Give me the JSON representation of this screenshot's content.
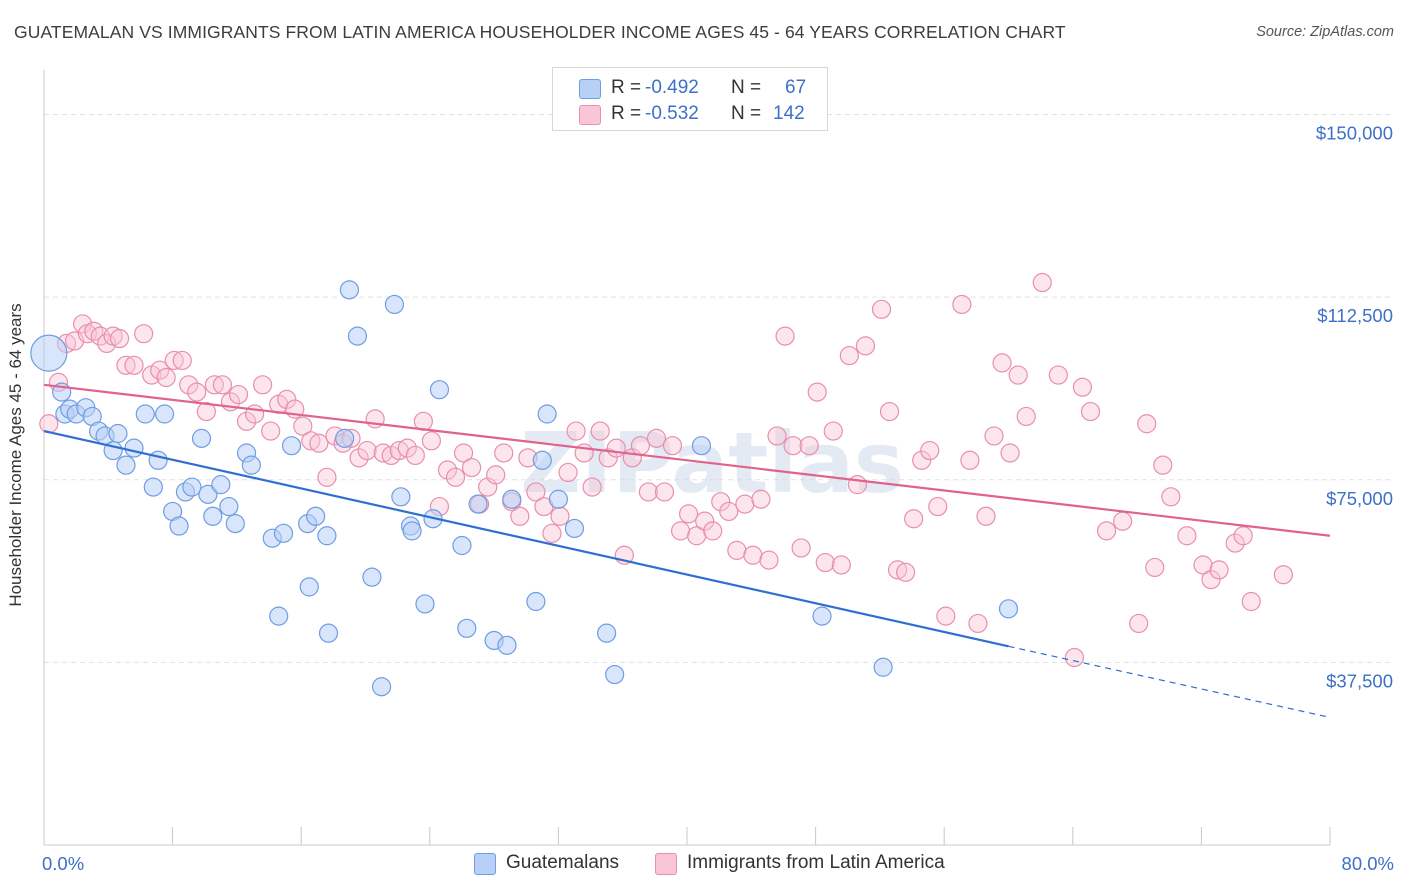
{
  "header": {
    "title": "GUATEMALAN VS IMMIGRANTS FROM LATIN AMERICA HOUSEHOLDER INCOME AGES 45 - 64 YEARS CORRELATION CHART",
    "source": "Source: ZipAtlas.com"
  },
  "stats": {
    "row1": {
      "r_label": "R =",
      "r_value": "-0.492",
      "n_label": "N =",
      "n_value": "67"
    },
    "row2": {
      "r_label": "R =",
      "r_value": "-0.532",
      "n_label": "N =",
      "n_value": "142"
    }
  },
  "legend": {
    "item1": "Guatemalans",
    "item2": "Immigrants from Latin America"
  },
  "colors": {
    "blue_fill": "#b8d0f5",
    "blue_stroke": "#6f9de3",
    "blue_line": "#2f6fd0",
    "pink_fill": "#f8c6d6",
    "pink_stroke": "#e88fae",
    "pink_line": "#e0628d",
    "tick_text": "#3d70c8",
    "grid": "#e2e2e2"
  },
  "chart_data": {
    "type": "scatter",
    "title": "GUATEMALAN VS IMMIGRANTS FROM LATIN AMERICA HOUSEHOLDER INCOME AGES 45 - 64 YEARS CORRELATION CHART",
    "xlabel": "",
    "ylabel": "Householder Income Ages 45 - 64 years",
    "xlim": [
      0,
      80
    ],
    "ylim": [
      0,
      157500
    ],
    "x_tick_labels": [
      "0.0%",
      "80.0%"
    ],
    "y_ticks": [
      37500,
      75000,
      112500,
      150000
    ],
    "y_tick_labels": [
      "$37,500",
      "$75,000",
      "$112,500",
      "$150,000"
    ],
    "grid": "horizontal dashed",
    "legend_position": "bottom-center",
    "watermark": "ZIPatlas",
    "series": [
      {
        "name": "Guatemalans",
        "r": -0.492,
        "n": 67,
        "trend": {
          "x": [
            0,
            60
          ],
          "y": [
            85000,
            40800
          ],
          "dashed_extension_to_x": 80,
          "dashed_end_y": 26200
        },
        "points": [
          [
            0.3,
            101000
          ],
          [
            1.1,
            93000
          ],
          [
            1.3,
            88500
          ],
          [
            1.6,
            89500
          ],
          [
            2.0,
            88500
          ],
          [
            2.6,
            89800
          ],
          [
            3.0,
            88000
          ],
          [
            3.4,
            85000
          ],
          [
            3.8,
            84000
          ],
          [
            4.3,
            81000
          ],
          [
            4.6,
            84500
          ],
          [
            5.1,
            78000
          ],
          [
            5.6,
            81500
          ],
          [
            6.3,
            88500
          ],
          [
            6.8,
            73500
          ],
          [
            7.1,
            79000
          ],
          [
            7.5,
            88500
          ],
          [
            8.0,
            68500
          ],
          [
            8.4,
            65500
          ],
          [
            8.8,
            72500
          ],
          [
            9.2,
            73500
          ],
          [
            9.8,
            83500
          ],
          [
            10.2,
            72000
          ],
          [
            10.5,
            67500
          ],
          [
            11.0,
            74000
          ],
          [
            11.5,
            69500
          ],
          [
            11.9,
            66000
          ],
          [
            12.6,
            80500
          ],
          [
            12.9,
            78000
          ],
          [
            14.2,
            63000
          ],
          [
            14.9,
            64000
          ],
          [
            15.4,
            82000
          ],
          [
            16.4,
            66000
          ],
          [
            16.9,
            67500
          ],
          [
            17.6,
            63500
          ],
          [
            18.7,
            83500
          ],
          [
            19.0,
            114000
          ],
          [
            19.5,
            104500
          ],
          [
            20.4,
            55000
          ],
          [
            21.0,
            32500
          ],
          [
            21.8,
            111000
          ],
          [
            22.2,
            71500
          ],
          [
            22.8,
            65500
          ],
          [
            22.9,
            64500
          ],
          [
            23.7,
            49500
          ],
          [
            24.2,
            67000
          ],
          [
            24.6,
            93500
          ],
          [
            26.0,
            61500
          ],
          [
            26.3,
            44500
          ],
          [
            28.0,
            42000
          ],
          [
            28.8,
            41000
          ],
          [
            29.1,
            71000
          ],
          [
            30.6,
            50000
          ],
          [
            31.0,
            79000
          ],
          [
            31.3,
            88500
          ],
          [
            32.0,
            71000
          ],
          [
            33.0,
            65000
          ],
          [
            35.0,
            43500
          ],
          [
            35.5,
            35000
          ],
          [
            14.6,
            47000
          ],
          [
            16.5,
            53000
          ],
          [
            17.7,
            43500
          ],
          [
            27.0,
            70000
          ],
          [
            40.9,
            82000
          ],
          [
            48.4,
            47000
          ],
          [
            52.2,
            36500
          ],
          [
            60.0,
            48500
          ]
        ]
      },
      {
        "name": "Immigrants from Latin America",
        "r": -0.532,
        "n": 142,
        "trend": {
          "x": [
            0,
            80
          ],
          "y": [
            94500,
            63500
          ]
        },
        "points": [
          [
            0.3,
            86500
          ],
          [
            0.9,
            95000
          ],
          [
            1.4,
            103000
          ],
          [
            1.9,
            103500
          ],
          [
            2.4,
            107000
          ],
          [
            2.7,
            105000
          ],
          [
            3.1,
            105500
          ],
          [
            3.5,
            104500
          ],
          [
            3.9,
            103000
          ],
          [
            4.3,
            104500
          ],
          [
            4.7,
            104000
          ],
          [
            5.1,
            98500
          ],
          [
            5.6,
            98500
          ],
          [
            6.2,
            105000
          ],
          [
            6.7,
            96500
          ],
          [
            7.2,
            97500
          ],
          [
            7.6,
            96000
          ],
          [
            8.1,
            99500
          ],
          [
            8.6,
            99500
          ],
          [
            9.0,
            94500
          ],
          [
            9.5,
            93000
          ],
          [
            10.1,
            89000
          ],
          [
            10.6,
            94500
          ],
          [
            11.1,
            94500
          ],
          [
            11.6,
            91000
          ],
          [
            12.1,
            92500
          ],
          [
            12.6,
            87000
          ],
          [
            13.1,
            88500
          ],
          [
            13.6,
            94500
          ],
          [
            14.1,
            85000
          ],
          [
            14.6,
            90500
          ],
          [
            15.1,
            91500
          ],
          [
            15.6,
            89500
          ],
          [
            16.1,
            86000
          ],
          [
            16.6,
            83000
          ],
          [
            17.1,
            82500
          ],
          [
            17.6,
            75500
          ],
          [
            18.1,
            84000
          ],
          [
            18.6,
            82500
          ],
          [
            19.1,
            83500
          ],
          [
            19.6,
            79500
          ],
          [
            20.1,
            81000
          ],
          [
            20.6,
            87500
          ],
          [
            21.1,
            80500
          ],
          [
            21.6,
            80000
          ],
          [
            22.1,
            81000
          ],
          [
            22.6,
            81500
          ],
          [
            23.1,
            80000
          ],
          [
            23.6,
            87000
          ],
          [
            24.1,
            83000
          ],
          [
            24.6,
            69500
          ],
          [
            25.1,
            77000
          ],
          [
            25.6,
            75500
          ],
          [
            26.1,
            80500
          ],
          [
            26.6,
            77500
          ],
          [
            27.1,
            70000
          ],
          [
            27.6,
            73500
          ],
          [
            28.1,
            76000
          ],
          [
            28.6,
            80500
          ],
          [
            29.1,
            70500
          ],
          [
            29.6,
            67500
          ],
          [
            30.1,
            79500
          ],
          [
            30.6,
            72500
          ],
          [
            31.1,
            69500
          ],
          [
            31.6,
            64000
          ],
          [
            32.1,
            67500
          ],
          [
            32.6,
            76500
          ],
          [
            33.1,
            85000
          ],
          [
            33.6,
            80500
          ],
          [
            34.1,
            73500
          ],
          [
            34.6,
            85000
          ],
          [
            35.1,
            79500
          ],
          [
            35.6,
            81500
          ],
          [
            36.1,
            59500
          ],
          [
            36.6,
            79500
          ],
          [
            37.1,
            82000
          ],
          [
            37.6,
            72500
          ],
          [
            38.1,
            83500
          ],
          [
            38.6,
            72500
          ],
          [
            39.1,
            82000
          ],
          [
            39.6,
            64500
          ],
          [
            40.1,
            68000
          ],
          [
            40.6,
            63500
          ],
          [
            41.1,
            66500
          ],
          [
            41.6,
            64500
          ],
          [
            42.1,
            70500
          ],
          [
            42.6,
            68500
          ],
          [
            43.1,
            60500
          ],
          [
            43.6,
            70000
          ],
          [
            44.1,
            59500
          ],
          [
            44.6,
            71000
          ],
          [
            45.1,
            58500
          ],
          [
            45.6,
            84000
          ],
          [
            46.1,
            104500
          ],
          [
            46.6,
            82000
          ],
          [
            47.1,
            61000
          ],
          [
            47.6,
            82000
          ],
          [
            48.1,
            93000
          ],
          [
            48.6,
            58000
          ],
          [
            49.1,
            85000
          ],
          [
            49.6,
            57500
          ],
          [
            50.1,
            100500
          ],
          [
            50.6,
            74000
          ],
          [
            51.1,
            102500
          ],
          [
            52.1,
            110000
          ],
          [
            52.6,
            89000
          ],
          [
            53.1,
            56500
          ],
          [
            53.6,
            56000
          ],
          [
            54.1,
            67000
          ],
          [
            54.6,
            79000
          ],
          [
            55.1,
            81000
          ],
          [
            55.6,
            69500
          ],
          [
            56.1,
            47000
          ],
          [
            57.1,
            111000
          ],
          [
            57.6,
            79000
          ],
          [
            58.1,
            45500
          ],
          [
            58.6,
            67500
          ],
          [
            59.1,
            84000
          ],
          [
            59.6,
            99000
          ],
          [
            60.1,
            80500
          ],
          [
            60.6,
            96500
          ],
          [
            61.1,
            88000
          ],
          [
            62.1,
            115500
          ],
          [
            63.1,
            96500
          ],
          [
            64.1,
            38500
          ],
          [
            64.6,
            94000
          ],
          [
            65.1,
            89000
          ],
          [
            66.1,
            64500
          ],
          [
            67.1,
            66500
          ],
          [
            68.1,
            45500
          ],
          [
            68.6,
            86500
          ],
          [
            69.1,
            57000
          ],
          [
            69.6,
            78000
          ],
          [
            70.1,
            71500
          ],
          [
            71.1,
            63500
          ],
          [
            72.1,
            57500
          ],
          [
            72.6,
            54500
          ],
          [
            73.1,
            56500
          ],
          [
            74.1,
            62000
          ],
          [
            74.6,
            63500
          ],
          [
            75.1,
            50000
          ],
          [
            77.1,
            55500
          ]
        ]
      }
    ]
  }
}
